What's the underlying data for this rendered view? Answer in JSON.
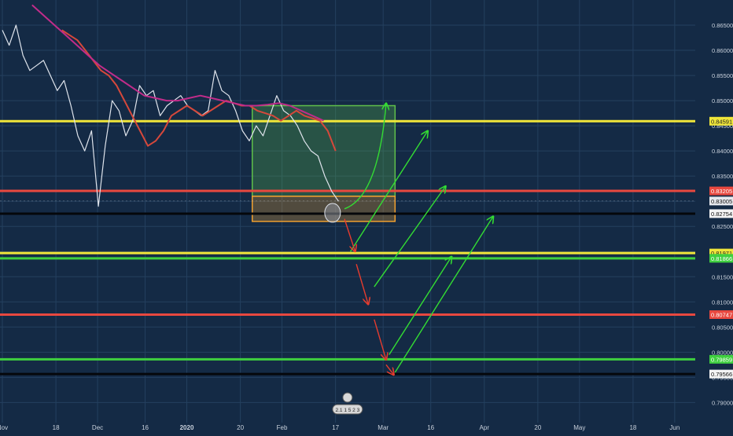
{
  "colors": {
    "background": "#142a45",
    "grid": "#24405f",
    "price": "#dfe4ec",
    "axis_text": "#c9d1dc",
    "ma_fast": "#d6483b",
    "ma_slow": "#c12c8a",
    "yellow": "#f0e63a",
    "red": "#e8483f",
    "green": "#3fcf3f",
    "black": "#05070b",
    "box_green": "#5fbf4a",
    "box_orange": "#f0a030",
    "arrow_green": "#33dd33",
    "arrow_red": "#e63c2e"
  },
  "chart_data": {
    "type": "line",
    "ylim": [
      0.786,
      0.87
    ],
    "y_ticks": [
      "0.86500",
      "0.86000",
      "0.85500",
      "0.85000",
      "0.84500",
      "0.84000",
      "0.83500",
      "0.83000",
      "0.82500",
      "0.82000",
      "0.81500",
      "0.81000",
      "0.80500",
      "0.80000",
      "0.79500",
      "0.79000"
    ],
    "x_ticks": [
      "Nov",
      "18",
      "Dec",
      "16",
      "2020",
      "20",
      "Feb",
      "17",
      "Mar",
      "16",
      "Apr",
      "20",
      "May",
      "18",
      "Jun"
    ],
    "price_series": {
      "name": "",
      "x_range_days": [
        0,
        115
      ],
      "x_tick_days": [
        0,
        9,
        16,
        24,
        31,
        40,
        47,
        56,
        64,
        72,
        81,
        90,
        97,
        106,
        113
      ],
      "values": [
        0.864,
        0.861,
        0.865,
        0.859,
        0.856,
        0.857,
        0.858,
        0.855,
        0.852,
        0.854,
        0.849,
        0.843,
        0.84,
        0.844,
        0.829,
        0.841,
        0.85,
        0.848,
        0.843,
        0.846,
        0.853,
        0.851,
        0.852,
        0.847,
        0.849,
        0.85,
        0.851,
        0.849,
        0.848,
        0.847,
        0.848,
        0.856,
        0.852,
        0.851,
        0.848,
        0.844,
        0.842,
        0.845,
        0.843,
        0.847,
        0.851,
        0.848,
        0.847,
        0.845,
        0.842,
        0.84,
        0.839,
        0.835,
        0.832,
        0.83
      ]
    },
    "moving_averages": [
      {
        "name": "",
        "color": "ma_fast",
        "values": [
          0.864,
          0.863,
          0.862,
          0.86,
          0.858,
          0.856,
          0.855,
          0.853,
          0.85,
          0.847,
          0.844,
          0.841,
          0.842,
          0.844,
          0.847,
          0.848,
          0.849,
          0.848,
          0.847,
          0.848,
          0.849,
          0.85,
          0.8495,
          0.849,
          0.849,
          0.848,
          0.8475,
          0.847,
          0.846,
          0.847,
          0.848,
          0.847,
          0.8465,
          0.846,
          0.844,
          0.84
        ]
      },
      {
        "name": "",
        "color": "ma_slow",
        "values": [
          0.869,
          0.867,
          0.865,
          0.863,
          0.861,
          0.859,
          0.857,
          0.8555,
          0.854,
          0.8525,
          0.851,
          0.8505,
          0.85,
          0.85,
          0.8505,
          0.851,
          0.8505,
          0.85,
          0.8495,
          0.849,
          0.849,
          0.8492,
          0.8495,
          0.849,
          0.848,
          0.847,
          0.846
        ]
      }
    ],
    "horizontal_levels": [
      {
        "label": "0.84591",
        "value": 0.84591,
        "color": "yellow"
      },
      {
        "label": "0.83205",
        "value": 0.83205,
        "color": "red"
      },
      {
        "label": "0.83005",
        "value": 0.83005,
        "color": "price"
      },
      {
        "label": "0.82754",
        "value": 0.82754,
        "color": "black"
      },
      {
        "label": "0.81971",
        "value": 0.81971,
        "color": "yellow"
      },
      {
        "label": "0.81866",
        "value": 0.81866,
        "color": "green"
      },
      {
        "label": "0.80747",
        "value": 0.80747,
        "color": "red"
      },
      {
        "label": "0.79859",
        "value": 0.79859,
        "color": "green"
      },
      {
        "label": "0.79566",
        "value": 0.79566,
        "color": "black"
      }
    ],
    "zones": [
      {
        "name": "green-zone",
        "day_from": 42,
        "day_to": 66,
        "y_from": 0.849,
        "y_to": 0.831,
        "color": "box_green"
      },
      {
        "name": "orange-zone",
        "day_from": 42,
        "day_to": 66,
        "y_from": 0.831,
        "y_to": 0.826,
        "color": "box_orange"
      }
    ],
    "arrows": [
      {
        "color": "arrow_green",
        "from": [
          57.5,
          0.8285
        ],
        "to": [
          64.5,
          0.8495
        ],
        "curved": true
      },
      {
        "color": "arrow_green",
        "from": [
          58.5,
          0.82
        ],
        "to": [
          71.5,
          0.844
        ]
      },
      {
        "color": "arrow_green",
        "from": [
          62.5,
          0.813
        ],
        "to": [
          74.5,
          0.833
        ]
      },
      {
        "color": "arrow_green",
        "from": [
          65.0,
          0.7995
        ],
        "to": [
          75.5,
          0.819
        ]
      },
      {
        "color": "arrow_green",
        "from": [
          66.0,
          0.796
        ],
        "to": [
          82.5,
          0.827
        ]
      },
      {
        "color": "arrow_red",
        "from": [
          57.5,
          0.8265
        ],
        "to": [
          59.3,
          0.82
        ]
      },
      {
        "color": "arrow_red",
        "from": [
          59.5,
          0.8175
        ],
        "to": [
          61.5,
          0.8095
        ]
      },
      {
        "color": "arrow_red",
        "from": [
          62.5,
          0.8065
        ],
        "to": [
          64.5,
          0.7985
        ]
      },
      {
        "color": "arrow_red",
        "from": [
          64.5,
          0.7975
        ],
        "to": [
          65.8,
          0.7955
        ]
      }
    ],
    "marker": {
      "day": 55.5,
      "value": 0.8277,
      "color": "price"
    },
    "bottom_badge": {
      "text": "2.1 1 5 2 3"
    }
  }
}
